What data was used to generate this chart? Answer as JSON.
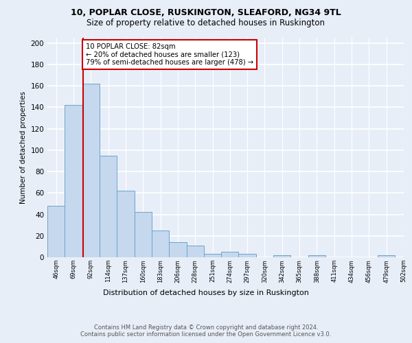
{
  "title1": "10, POPLAR CLOSE, RUSKINGTON, SLEAFORD, NG34 9TL",
  "title2": "Size of property relative to detached houses in Ruskington",
  "xlabel": "Distribution of detached houses by size in Ruskington",
  "ylabel": "Number of detached properties",
  "bar_values": [
    48,
    142,
    162,
    95,
    62,
    42,
    25,
    14,
    11,
    3,
    5,
    3,
    0,
    2,
    0,
    2,
    0,
    0,
    0,
    2
  ],
  "bar_labels": [
    "46sqm",
    "69sqm",
    "92sqm",
    "114sqm",
    "137sqm",
    "160sqm",
    "183sqm",
    "206sqm",
    "228sqm",
    "251sqm",
    "274sqm",
    "297sqm",
    "320sqm",
    "342sqm",
    "365sqm",
    "388sqm",
    "411sqm",
    "434sqm",
    "456sqm",
    "479sqm",
    "502sqm"
  ],
  "bar_color": "#c5d8ed",
  "bar_edge_color": "#6ea3cc",
  "annotation_label": "10 POPLAR CLOSE: 82sqm",
  "annotation_line1": "← 20% of detached houses are smaller (123)",
  "annotation_line2": "79% of semi-detached houses are larger (478) →",
  "annotation_box_facecolor": "#ffffff",
  "annotation_box_edgecolor": "#cc0000",
  "vline_color": "#cc0000",
  "ylim": [
    0,
    205
  ],
  "yticks": [
    0,
    20,
    40,
    60,
    80,
    100,
    120,
    140,
    160,
    180,
    200
  ],
  "footnote": "Contains HM Land Registry data © Crown copyright and database right 2024.\nContains public sector information licensed under the Open Government Licence v3.0.",
  "bg_color": "#e8eef8",
  "plot_bg_color": "#e8eef8",
  "grid_color": "#ffffff",
  "vline_x_bar": 1.57
}
